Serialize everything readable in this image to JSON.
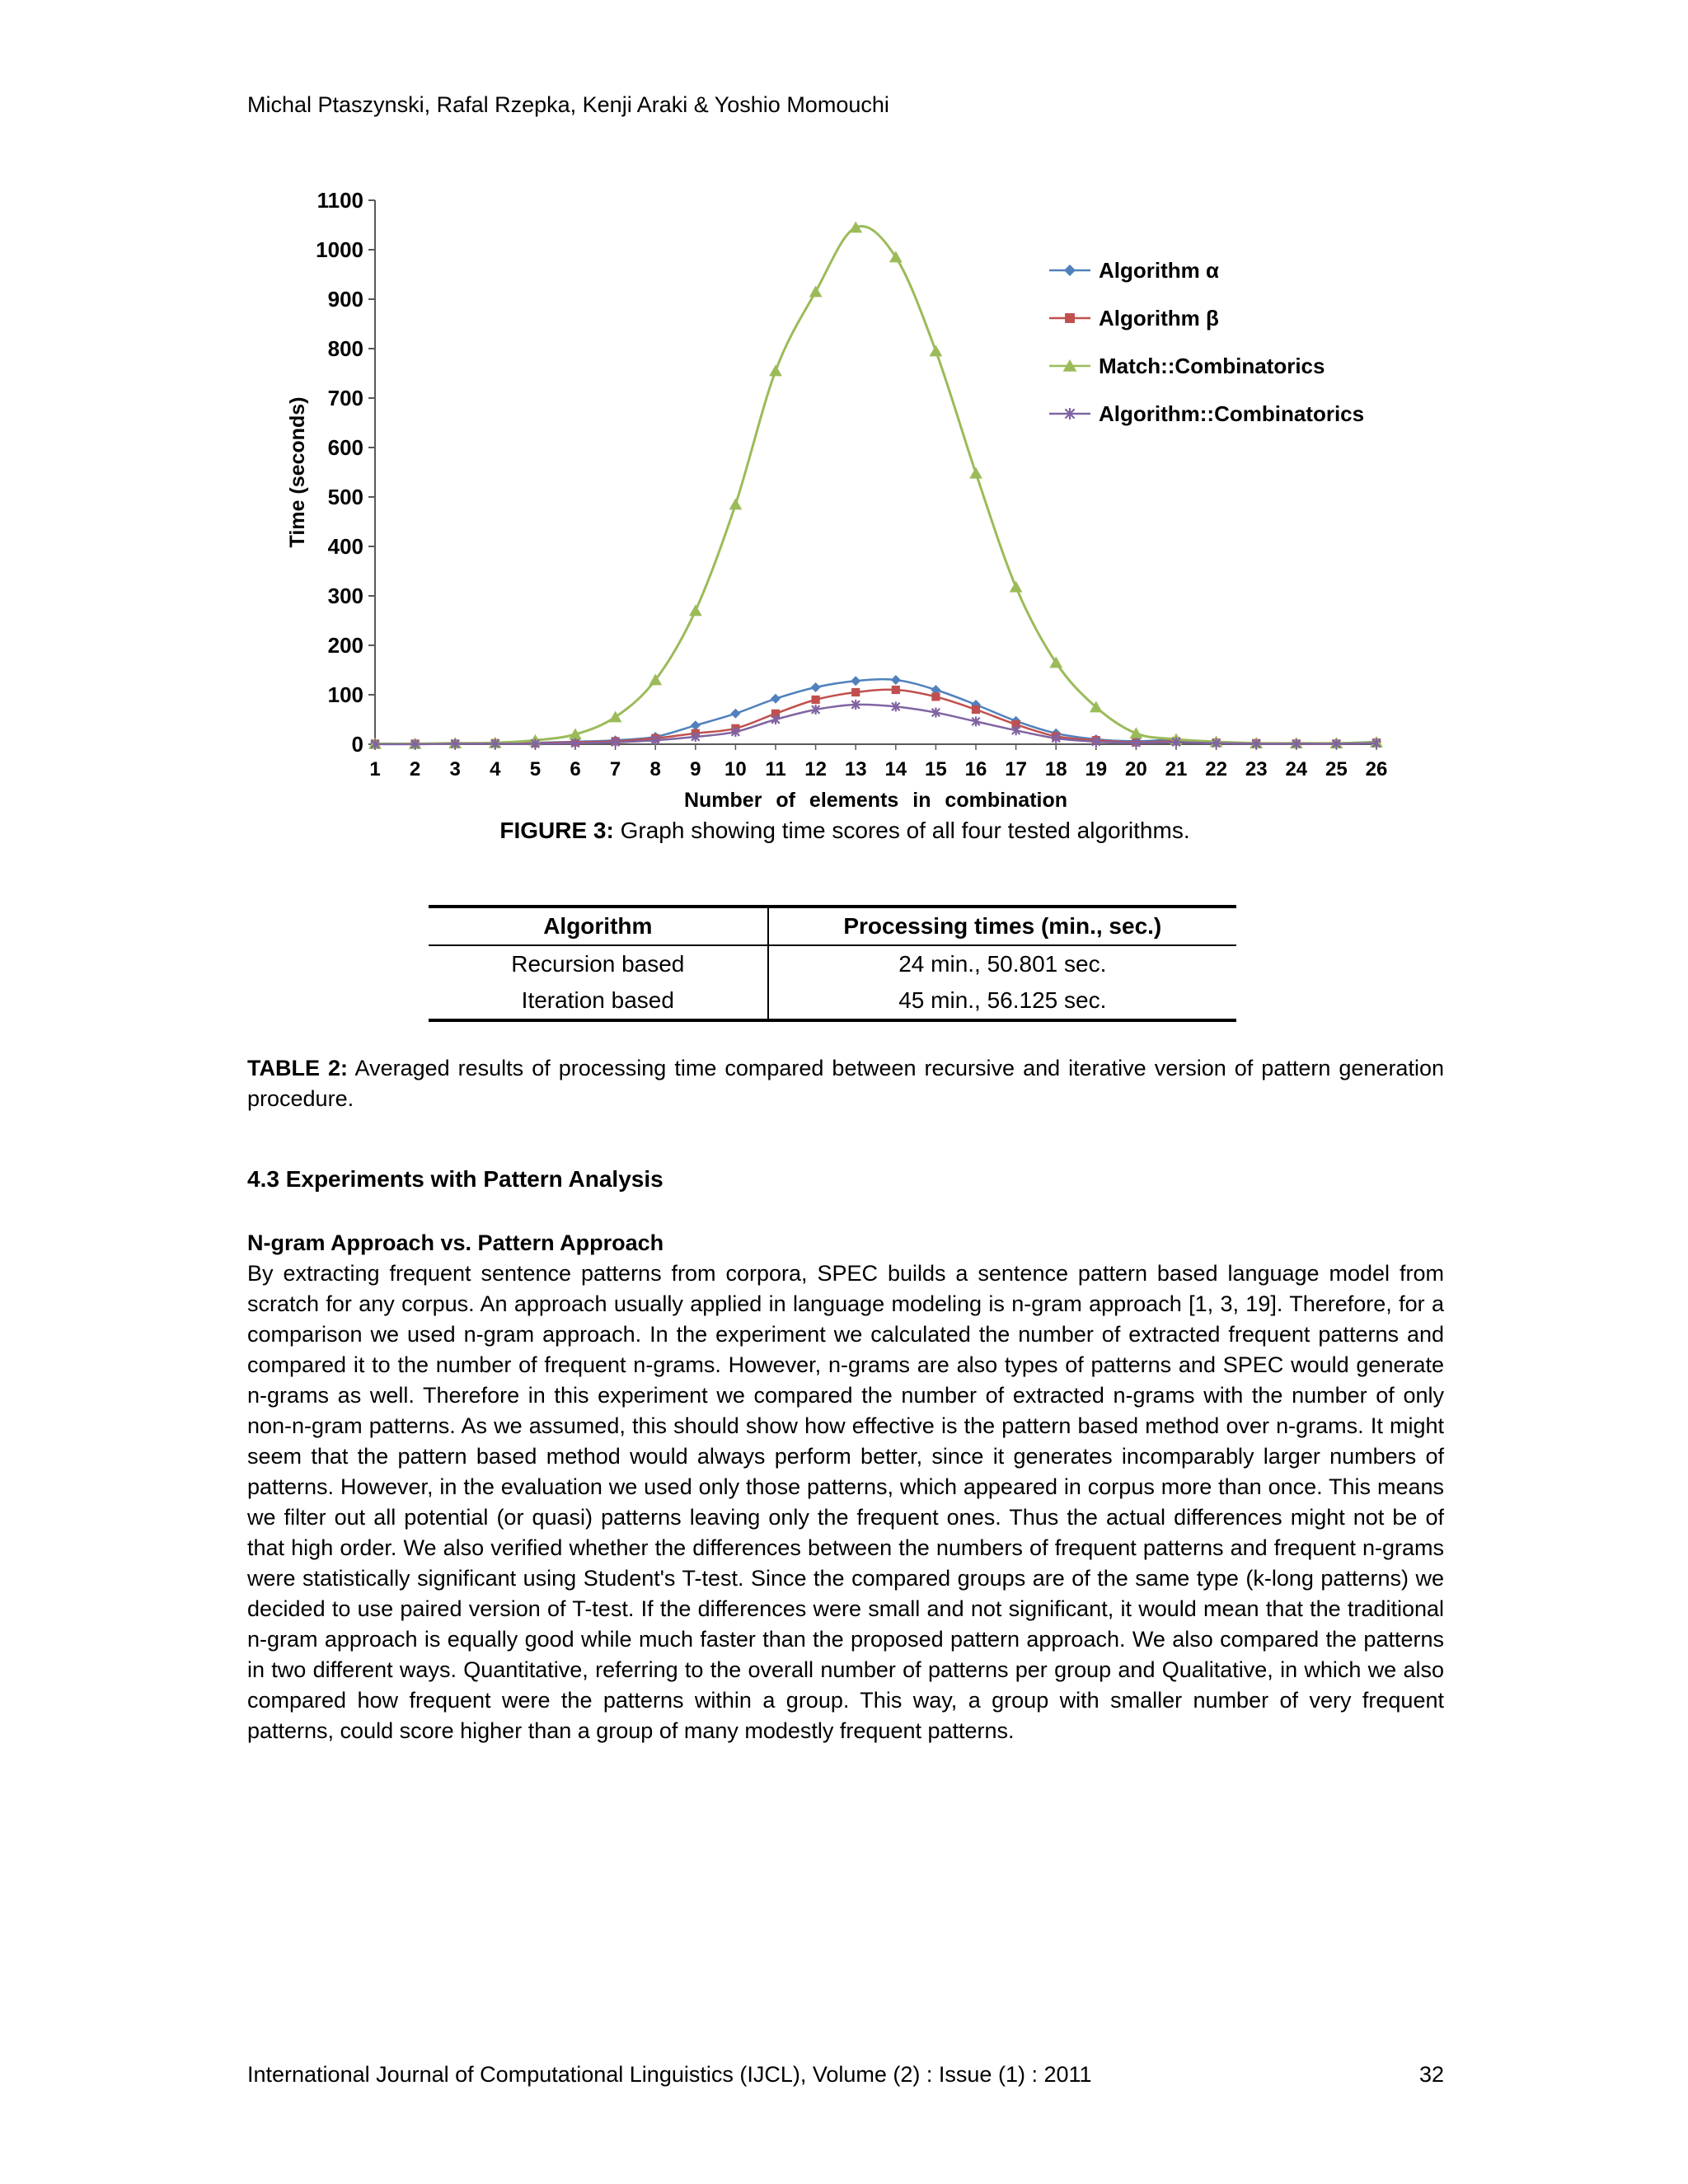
{
  "page": {
    "authors": "Michal Ptaszynski, Rafal Rzepka, Kenji Araki & Yoshio Momouchi",
    "footer_left": "International Journal of Computational Linguistics (IJCL), Volume (2) : Issue (1) : 2011",
    "footer_page": "32"
  },
  "figure": {
    "caption_label": "FIGURE 3:",
    "caption_text": " Graph showing time scores of all four tested algorithms."
  },
  "table": {
    "headers": [
      "Algorithm",
      "Processing times (min., sec.)"
    ],
    "rows": [
      [
        "Recursion based",
        "24 min., 50.801 sec."
      ],
      [
        "Iteration based",
        "45 min., 56.125 sec."
      ]
    ],
    "caption_label": "TABLE 2:",
    "caption_text": " Averaged results of processing time compared between recursive and iterative version of pattern generation procedure."
  },
  "sections": {
    "heading": "4.3 Experiments with Pattern Analysis",
    "subheading": "N-gram Approach vs. Pattern Approach",
    "body": "By extracting frequent sentence patterns from corpora, SPEC builds a sentence pattern based language model from scratch for any corpus. An approach usually applied in language modeling is n-gram approach [1, 3, 19]. Therefore, for a comparison we used n-gram approach. In the experiment we calculated the number of extracted frequent patterns and compared it to the number of frequent n-grams. However, n-grams are also types of patterns and SPEC would generate n-grams as well. Therefore in this experiment we compared the number of extracted n-grams with the number of only non-n-gram patterns. As we assumed, this should show how effective is the pattern based method over n-grams. It might seem that the pattern based method would always perform better, since it generates incomparably larger numbers of patterns. However, in the evaluation we used only those patterns, which appeared in corpus more than once. This means we filter out all potential (or quasi) patterns leaving only the frequent ones. Thus the actual differences might not be of that high order. We also verified whether the differences between the numbers of frequent patterns and frequent n-grams were statistically significant using Student's T-test. Since the compared groups are of the same type (k-long patterns) we decided to use paired version of T-test. If the differences were small and not significant, it would mean that the traditional n-gram approach is equally good while much faster than the proposed pattern approach. We also compared the patterns in two different ways. Quantitative, referring to the overall number of patterns per group and Qualitative, in which we also compared how frequent were the patterns within a group. This way, a group with smaller number of very frequent patterns, could score higher than a group of many modestly frequent patterns."
  },
  "chart_data": {
    "type": "line",
    "title": "",
    "xlabel": "Number of elements in combination",
    "ylabel": "Time (seconds)",
    "x": [
      1,
      2,
      3,
      4,
      5,
      6,
      7,
      8,
      9,
      10,
      11,
      12,
      13,
      14,
      15,
      16,
      17,
      18,
      19,
      20,
      21,
      22,
      23,
      24,
      25,
      26
    ],
    "ylim": [
      0,
      1100
    ],
    "ytick_step": 100,
    "grid": false,
    "legend_position": "top-right",
    "series": [
      {
        "name": "Algorithm α",
        "color": "#4F81BD",
        "marker": "diamond",
        "values": [
          1,
          1,
          1,
          2,
          3,
          5,
          8,
          15,
          38,
          62,
          92,
          115,
          128,
          130,
          110,
          80,
          47,
          22,
          10,
          6,
          9,
          4,
          2,
          2,
          2,
          5
        ]
      },
      {
        "name": "Algorithm β",
        "color": "#C0504D",
        "marker": "square",
        "values": [
          1,
          1,
          1,
          2,
          2,
          4,
          6,
          12,
          22,
          32,
          62,
          90,
          105,
          110,
          96,
          70,
          40,
          16,
          8,
          4,
          6,
          3,
          2,
          1,
          1,
          3
        ]
      },
      {
        "name": "Match::Combinatorics",
        "color": "#9BBB59",
        "marker": "triangle",
        "values": [
          1,
          1,
          2,
          3,
          8,
          20,
          55,
          130,
          270,
          485,
          755,
          915,
          1045,
          985,
          795,
          548,
          318,
          165,
          75,
          22,
          10,
          5,
          2,
          2,
          2,
          4
        ]
      },
      {
        "name": "Algorithm::Combinatorics",
        "color": "#8064A2",
        "marker": "xstar",
        "values": [
          0,
          0,
          1,
          1,
          1,
          2,
          4,
          8,
          15,
          25,
          50,
          70,
          80,
          76,
          64,
          46,
          28,
          12,
          5,
          3,
          4,
          2,
          1,
          1,
          1,
          2
        ]
      }
    ]
  }
}
